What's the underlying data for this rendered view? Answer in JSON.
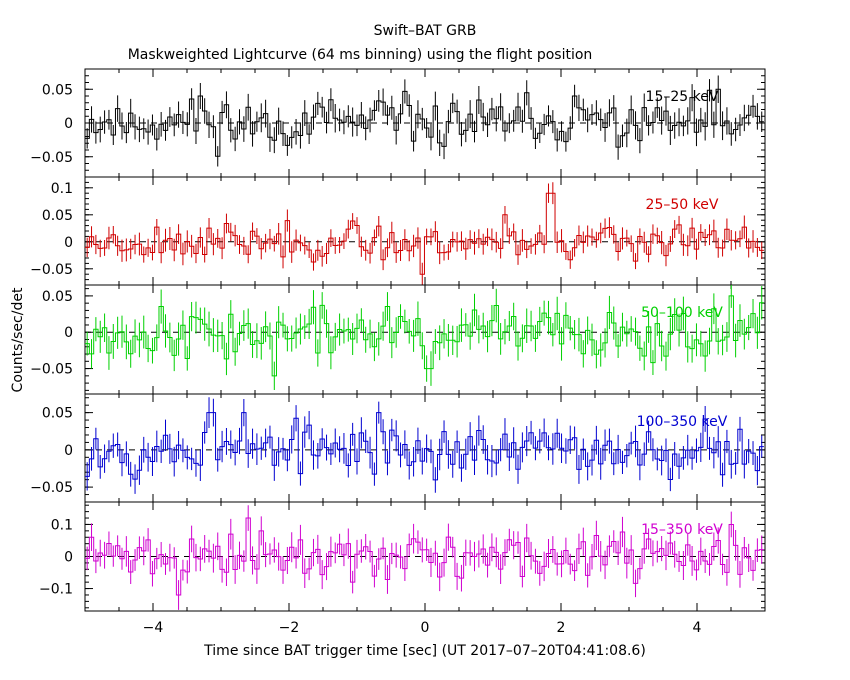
{
  "chart_data": {
    "type": "line",
    "title": "Swift–BAT GRB",
    "subtitle": "Maskweighted Lightcurve (64 ms binning) using the flight position",
    "xlabel": "Time since BAT trigger time [sec] (UT 2017–07–20T04:41:08.6)",
    "ylabel": "Counts/sec/det",
    "xlim": [
      -5,
      5
    ],
    "x_ticks": [
      -4,
      -2,
      0,
      2,
      4
    ],
    "x_tick_labels": [
      "−4",
      "−2",
      "0",
      "2",
      "4"
    ],
    "bin_width_sec": 0.064,
    "panels": [
      {
        "name": "15-25 keV",
        "label": "15–25 keV",
        "color": "#000000",
        "ylim": [
          -0.08,
          0.08
        ],
        "y_ticks": [
          -0.05,
          0,
          0.05
        ],
        "y_tick_labels": [
          "−0.05",
          "0",
          "0.05"
        ],
        "amplitude": 0.018,
        "error": 0.018,
        "seed": 11,
        "features": [
          [
            -3.3,
            0.04
          ],
          [
            2.2,
            0.04
          ],
          [
            4.3,
            0.05
          ]
        ]
      },
      {
        "name": "25-50 keV",
        "label": "25–50 keV",
        "color": "#d00000",
        "ylim": [
          -0.08,
          0.12
        ],
        "y_ticks": [
          -0.05,
          0,
          0.05,
          0.1
        ],
        "y_tick_labels": [
          "−0.05",
          "0",
          "0.05",
          "0.1"
        ],
        "amplitude": 0.016,
        "error": 0.018,
        "seed": 23,
        "features": [
          [
            1.2,
            0.05
          ],
          [
            1.85,
            0.09
          ],
          [
            -0.05,
            -0.06
          ]
        ]
      },
      {
        "name": "50-100 keV",
        "label": "50–100 keV",
        "color": "#00d000",
        "ylim": [
          -0.085,
          0.065
        ],
        "y_ticks": [
          -0.05,
          0,
          0.05
        ],
        "y_tick_labels": [
          "−0.05",
          "0",
          "0.05"
        ],
        "amplitude": 0.017,
        "error": 0.02,
        "seed": 37,
        "features": [
          [
            -2.2,
            -0.06
          ],
          [
            0.05,
            -0.05
          ],
          [
            4.5,
            0.05
          ]
        ]
      },
      {
        "name": "100-350 keV",
        "label": "100–350 keV",
        "color": "#0000d0",
        "ylim": [
          -0.07,
          0.075
        ],
        "y_ticks": [
          -0.05,
          0,
          0.05
        ],
        "y_tick_labels": [
          "−0.05",
          "0",
          "0.05"
        ],
        "amplitude": 0.017,
        "error": 0.018,
        "seed": 53,
        "features": [
          [
            -3.15,
            0.05
          ],
          [
            -2.65,
            0.05
          ],
          [
            -0.7,
            0.05
          ]
        ]
      },
      {
        "name": "15-350 keV",
        "label": "15–350 keV",
        "color": "#d000d0",
        "ylim": [
          -0.17,
          0.17
        ],
        "y_ticks": [
          -0.1,
          0,
          0.1
        ],
        "y_tick_labels": [
          "−0.1",
          "0",
          "0.1"
        ],
        "amplitude": 0.035,
        "error": 0.04,
        "seed": 71,
        "features": [
          [
            -2.6,
            0.12
          ],
          [
            -3.6,
            -0.12
          ],
          [
            4.5,
            0.1
          ]
        ]
      }
    ]
  }
}
